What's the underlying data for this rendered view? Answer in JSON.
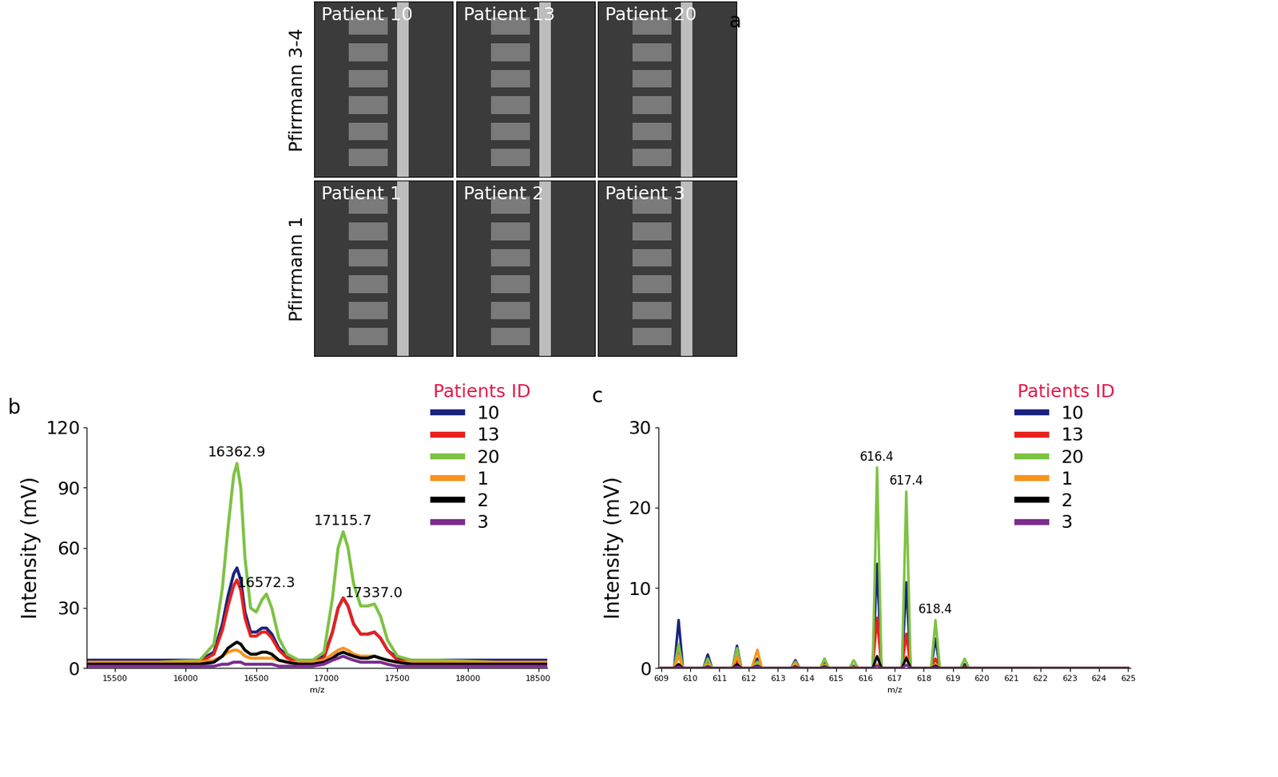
{
  "panel_a": {
    "panel_label": "a",
    "rows": [
      {
        "label": "Pfirrmann 3-4",
        "patients": [
          "Patient 10",
          "Patient 13",
          "Patient 20"
        ]
      },
      {
        "label": "Pfirrmann 1",
        "patients": [
          "Patient 1",
          "Patient 2",
          "Patient 3"
        ]
      }
    ]
  },
  "chart_data": [
    {
      "type": "line",
      "panel_label": "b",
      "x_label": "m/z",
      "y_label": "Intensity (mV)",
      "legend": "upper right",
      "legend_title": "Patients ID",
      "xlim": [
        15300,
        18560
      ],
      "xticks": [
        15500,
        16000,
        16500,
        17000,
        17500,
        18000,
        18500
      ],
      "ylim": [
        0,
        120
      ],
      "yticks": [
        0,
        30,
        60,
        90,
        120
      ],
      "x": [
        15300,
        15800,
        16100,
        16200,
        16260,
        16300,
        16340,
        16363,
        16390,
        16420,
        16460,
        16500,
        16540,
        16572,
        16610,
        16660,
        16720,
        16800,
        16900,
        16980,
        17040,
        17080,
        17116,
        17150,
        17190,
        17240,
        17290,
        17337,
        17380,
        17430,
        17500,
        17600,
        17800,
        18200,
        18560
      ],
      "series": [
        {
          "name": "10",
          "color": "#1a237e",
          "values": [
            4,
            4,
            4,
            8,
            22,
            36,
            47,
            50,
            44,
            28,
            18,
            18,
            20,
            20,
            17,
            10,
            6,
            4,
            4,
            6,
            18,
            30,
            35,
            31,
            22,
            17,
            17,
            18,
            15,
            9,
            5,
            4,
            4,
            4,
            4
          ]
        },
        {
          "name": "13",
          "color": "#e8211f",
          "values": [
            3,
            3,
            3,
            7,
            19,
            31,
            41,
            44,
            39,
            25,
            16,
            16,
            18,
            18,
            15,
            9,
            5,
            3,
            3,
            5,
            18,
            30,
            35,
            31,
            22,
            17,
            17,
            18,
            15,
            9,
            4,
            3,
            3,
            3,
            3
          ]
        },
        {
          "name": "20",
          "color": "#7dc242",
          "values": [
            3,
            3,
            4,
            12,
            40,
            70,
            96,
            102,
            90,
            55,
            30,
            28,
            34,
            37,
            30,
            15,
            7,
            4,
            4,
            8,
            35,
            60,
            68,
            60,
            42,
            31,
            31,
            32,
            26,
            14,
            6,
            4,
            4,
            3,
            3
          ]
        },
        {
          "name": "1",
          "color": "#f7941d",
          "values": [
            3,
            3,
            3,
            4,
            6,
            8,
            9,
            9,
            8,
            6,
            5,
            5,
            5,
            5,
            5,
            4,
            3,
            3,
            3,
            4,
            7,
            9,
            10,
            9,
            7,
            6,
            6,
            6,
            5,
            4,
            3,
            3,
            3,
            3,
            3
          ]
        },
        {
          "name": "2",
          "color": "#000000",
          "values": [
            2,
            2,
            2,
            3,
            6,
            10,
            12,
            13,
            12,
            9,
            7,
            7,
            8,
            8,
            7,
            4,
            3,
            2,
            2,
            3,
            5,
            7,
            8,
            7,
            6,
            5,
            5,
            6,
            5,
            4,
            3,
            2,
            2,
            2,
            2
          ]
        },
        {
          "name": "3",
          "color": "#7b2d8e",
          "values": [
            1,
            1,
            1,
            1,
            2,
            2,
            3,
            3,
            3,
            2,
            2,
            2,
            2,
            2,
            2,
            1,
            1,
            1,
            1,
            2,
            4,
            5,
            6,
            5,
            4,
            3,
            3,
            3,
            3,
            2,
            1,
            1,
            1,
            1,
            1
          ]
        }
      ],
      "annotations": [
        {
          "text": "16362.9",
          "x": 16362.9,
          "y": 102
        },
        {
          "text": "16572.3",
          "x": 16572.3,
          "y": 37
        },
        {
          "text": "17115.7",
          "x": 17115.7,
          "y": 68
        },
        {
          "text": "17337.0",
          "x": 17337.0,
          "y": 32
        }
      ]
    },
    {
      "type": "line",
      "panel_label": "c",
      "x_label": "m/z",
      "y_label": "Intensity (mV)",
      "legend": "upper right",
      "legend_title": "Patients ID",
      "xlim": [
        608.9,
        625.1
      ],
      "xticks": [
        609,
        610,
        611,
        612,
        613,
        614,
        615,
        616,
        617,
        618,
        619,
        620,
        621,
        622,
        623,
        624,
        625
      ],
      "ylim": [
        0,
        30
      ],
      "yticks": [
        0,
        10,
        20,
        30
      ],
      "x": [
        609.0,
        609.45,
        609.6,
        609.75,
        610.45,
        610.6,
        610.75,
        611.45,
        611.6,
        611.75,
        611.9,
        612.1,
        612.3,
        612.45,
        612.6,
        613.45,
        613.6,
        613.75,
        614.45,
        614.6,
        614.75,
        615.45,
        615.6,
        615.75,
        616.25,
        616.4,
        616.55,
        617.25,
        617.4,
        617.55,
        618.25,
        618.4,
        618.55,
        619.25,
        619.4,
        619.55,
        620.0,
        625.0
      ],
      "series": [
        {
          "name": "10",
          "color": "#1a237e",
          "values": [
            0,
            0,
            6,
            0,
            0,
            1.7,
            0,
            0,
            2.8,
            0,
            0,
            0,
            1.2,
            0,
            0,
            0,
            1.0,
            0,
            0,
            0.6,
            0,
            0,
            0.3,
            0,
            0,
            13,
            0,
            0,
            10.7,
            0,
            0,
            3.7,
            0,
            0,
            0.5,
            0,
            0,
            0
          ]
        },
        {
          "name": "13",
          "color": "#e8211f",
          "values": [
            0,
            0,
            2.6,
            0,
            0,
            0.8,
            0,
            0,
            1.0,
            0,
            0,
            0,
            0.8,
            0,
            0,
            0,
            0.5,
            0,
            0,
            0.5,
            0,
            0,
            0.2,
            0,
            0,
            6.3,
            0,
            0,
            4.3,
            0,
            0,
            1.2,
            0,
            0,
            0.2,
            0,
            0,
            0
          ]
        },
        {
          "name": "20",
          "color": "#7dc242",
          "values": [
            0,
            0,
            3,
            0,
            0,
            1.2,
            0,
            0,
            2.5,
            0,
            0,
            0,
            0.8,
            0,
            0,
            0,
            0.8,
            0,
            0,
            1.2,
            0,
            0,
            1.0,
            0,
            0,
            25,
            0,
            0,
            22,
            0,
            0,
            6,
            0,
            0,
            1.2,
            0,
            0,
            0
          ]
        },
        {
          "name": "1",
          "color": "#f7941d",
          "values": [
            0,
            0,
            1.5,
            0,
            0,
            0.5,
            0,
            0,
            1.5,
            0,
            0,
            0,
            2.3,
            0,
            0,
            0,
            0.6,
            0,
            0,
            0.4,
            0,
            0,
            0.2,
            0,
            0,
            0.5,
            0,
            0,
            1.5,
            0,
            0,
            0.5,
            0,
            0,
            0.1,
            0,
            0,
            0
          ]
        },
        {
          "name": "2",
          "color": "#000000",
          "values": [
            0,
            0,
            0.5,
            0,
            0,
            0.2,
            0,
            0,
            0.5,
            0,
            0,
            0,
            0.3,
            0,
            0,
            0,
            0.2,
            0,
            0,
            0.2,
            0,
            0,
            0.1,
            0,
            0,
            1.5,
            0,
            0,
            1.3,
            0,
            0,
            0.3,
            0,
            0,
            0.1,
            0,
            0,
            0
          ]
        },
        {
          "name": "3",
          "color": "#7b2d8e",
          "values": [
            0,
            0,
            0.2,
            0,
            0,
            0.1,
            0,
            0,
            0.2,
            0,
            0,
            0,
            0.2,
            0,
            0,
            0,
            0.1,
            0,
            0,
            0.1,
            0,
            0,
            0.1,
            0,
            0,
            0.3,
            0,
            0,
            0.4,
            0,
            0,
            0.1,
            0,
            0,
            0,
            0,
            0,
            0
          ]
        }
      ],
      "annotations": [
        {
          "text": "616.4",
          "x": 616.4,
          "y": 25
        },
        {
          "text": "617.4",
          "x": 617.4,
          "y": 22
        },
        {
          "text": "618.4",
          "x": 618.4,
          "y": 6
        }
      ]
    }
  ]
}
